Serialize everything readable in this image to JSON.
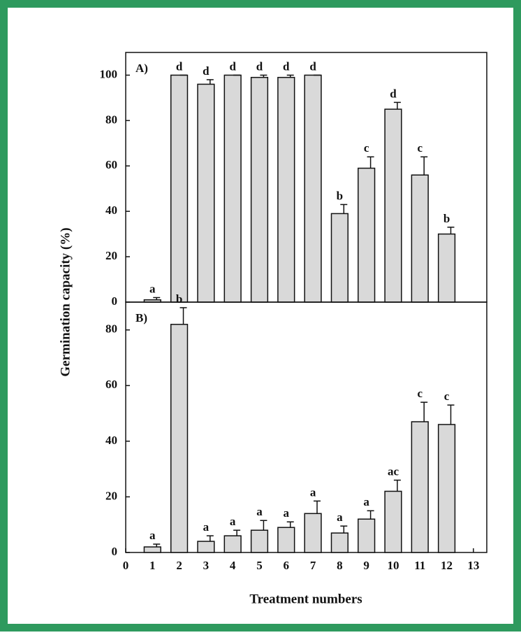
{
  "chart_data": [
    {
      "type": "bar",
      "panel_label": "A)",
      "ylabel": "Germination capacity (%)",
      "x": [
        1,
        2,
        3,
        4,
        5,
        6,
        7,
        8,
        9,
        10,
        11,
        12
      ],
      "values": [
        1,
        100,
        96,
        100,
        99,
        99,
        100,
        39,
        59,
        85,
        56,
        30
      ],
      "errors": [
        1,
        0,
        2,
        0,
        1,
        1,
        0,
        4,
        5,
        3,
        8,
        3
      ],
      "annotations": [
        "a",
        "d",
        "d",
        "d",
        "d",
        "d",
        "d",
        "b",
        "c",
        "d",
        "c",
        "b"
      ],
      "color": "#d9d9d9",
      "xlim": [
        0,
        13.5
      ],
      "ylim": [
        0,
        110
      ],
      "yticks": [
        0,
        20,
        40,
        60,
        80,
        100
      ]
    },
    {
      "type": "bar",
      "panel_label": "B)",
      "xlabel": "Treatment numbers",
      "x": [
        1,
        2,
        3,
        4,
        5,
        6,
        7,
        8,
        9,
        10,
        11,
        12
      ],
      "values": [
        2,
        82,
        4,
        6,
        8,
        9,
        14,
        7,
        12,
        22,
        47,
        46
      ],
      "errors": [
        1,
        6,
        2,
        2,
        3.5,
        2,
        4.5,
        2.5,
        3,
        4,
        7,
        7
      ],
      "annotations": [
        "a",
        "b",
        "a",
        "a",
        "a",
        "a",
        "a",
        "a",
        "a",
        "ac",
        "c",
        "c"
      ],
      "color": "#d9d9d9",
      "xlim": [
        0,
        13.5
      ],
      "xticks": [
        0,
        1,
        2,
        3,
        4,
        5,
        6,
        7,
        8,
        9,
        10,
        11,
        12,
        13
      ],
      "ylim": [
        0,
        90
      ],
      "yticks": [
        0,
        20,
        40,
        60,
        80
      ]
    }
  ]
}
